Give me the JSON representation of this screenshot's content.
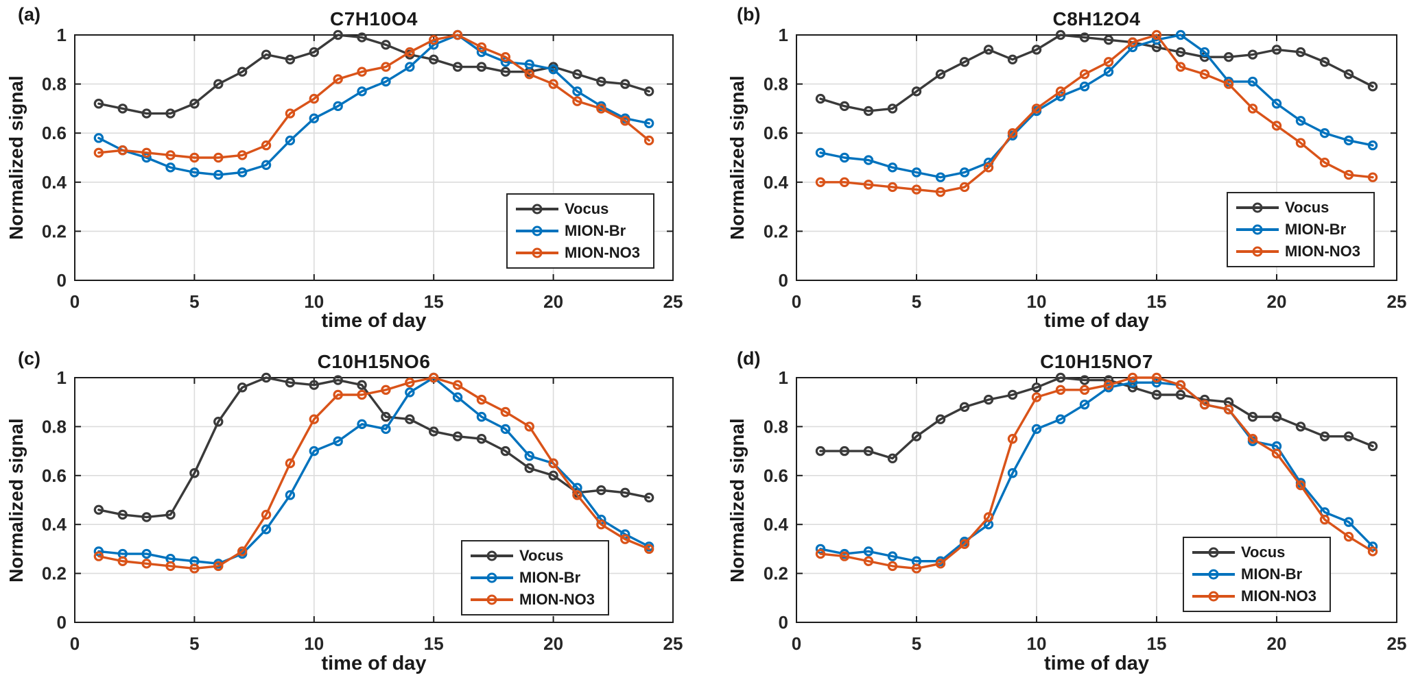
{
  "figure": {
    "background": "#ffffff",
    "text_color": "#1a1a1a",
    "axis_color": "#1c1c1c",
    "grid_color": "#dcdcdc",
    "series_colors": {
      "vocus": "#3a3a3a",
      "mion_br": "#0072BD",
      "mion_no3": "#D95319"
    },
    "ylabel": "Normalized signal",
    "xlabel": "time of day"
  },
  "chart_data": [
    {
      "id": "a",
      "panel_label": "(a)",
      "type": "line",
      "title": "C7H10O4",
      "xlabel": "time of day",
      "ylabel": "Normalized signal",
      "xlim": [
        0,
        25
      ],
      "ylim": [
        0,
        1
      ],
      "xticks": [
        0,
        5,
        10,
        15,
        20,
        25
      ],
      "yticks": [
        0,
        0.2,
        0.4,
        0.6,
        0.8,
        1
      ],
      "grid": true,
      "legend_position": "inset lower right",
      "x": [
        1,
        2,
        3,
        4,
        5,
        6,
        7,
        8,
        9,
        10,
        11,
        12,
        13,
        14,
        15,
        16,
        17,
        18,
        19,
        20,
        21,
        22,
        23,
        24
      ],
      "series": [
        {
          "name": "Vocus",
          "color": "#3a3a3a",
          "values": [
            0.72,
            0.7,
            0.68,
            0.68,
            0.72,
            0.8,
            0.85,
            0.92,
            0.9,
            0.93,
            1.0,
            0.99,
            0.96,
            0.92,
            0.9,
            0.87,
            0.87,
            0.85,
            0.85,
            0.87,
            0.84,
            0.81,
            0.8,
            0.77
          ]
        },
        {
          "name": "MION-Br",
          "color": "#0072BD",
          "values": [
            0.58,
            0.53,
            0.5,
            0.46,
            0.44,
            0.43,
            0.44,
            0.47,
            0.57,
            0.66,
            0.71,
            0.77,
            0.81,
            0.87,
            0.96,
            1.0,
            0.93,
            0.89,
            0.88,
            0.86,
            0.77,
            0.71,
            0.66,
            0.64
          ]
        },
        {
          "name": "MION-NO3",
          "color": "#D95319",
          "values": [
            0.52,
            0.53,
            0.52,
            0.51,
            0.5,
            0.5,
            0.51,
            0.55,
            0.68,
            0.74,
            0.82,
            0.85,
            0.87,
            0.93,
            0.98,
            1.0,
            0.95,
            0.91,
            0.84,
            0.8,
            0.73,
            0.7,
            0.65,
            0.57
          ]
        }
      ]
    },
    {
      "id": "b",
      "panel_label": "(b)",
      "type": "line",
      "title": "C8H12O4",
      "xlabel": "time of day",
      "ylabel": "Normalized signal",
      "xlim": [
        0,
        25
      ],
      "ylim": [
        0,
        1
      ],
      "xticks": [
        0,
        5,
        10,
        15,
        20,
        25
      ],
      "yticks": [
        0,
        0.2,
        0.4,
        0.6,
        0.8,
        1
      ],
      "grid": true,
      "legend_position": "inset lower right",
      "x": [
        1,
        2,
        3,
        4,
        5,
        6,
        7,
        8,
        9,
        10,
        11,
        12,
        13,
        14,
        15,
        16,
        17,
        18,
        19,
        20,
        21,
        22,
        23,
        24
      ],
      "series": [
        {
          "name": "Vocus",
          "color": "#3a3a3a",
          "values": [
            0.74,
            0.71,
            0.69,
            0.7,
            0.77,
            0.84,
            0.89,
            0.94,
            0.9,
            0.94,
            1.0,
            0.99,
            0.98,
            0.97,
            0.95,
            0.93,
            0.91,
            0.91,
            0.92,
            0.94,
            0.93,
            0.89,
            0.84,
            0.79
          ]
        },
        {
          "name": "MION-Br",
          "color": "#0072BD",
          "values": [
            0.52,
            0.5,
            0.49,
            0.46,
            0.44,
            0.42,
            0.44,
            0.48,
            0.59,
            0.69,
            0.75,
            0.79,
            0.85,
            0.95,
            0.98,
            1.0,
            0.93,
            0.81,
            0.81,
            0.72,
            0.65,
            0.6,
            0.57,
            0.55
          ]
        },
        {
          "name": "MION-NO3",
          "color": "#D95319",
          "values": [
            0.4,
            0.4,
            0.39,
            0.38,
            0.37,
            0.36,
            0.38,
            0.46,
            0.6,
            0.7,
            0.77,
            0.84,
            0.89,
            0.97,
            1.0,
            0.87,
            0.84,
            0.8,
            0.7,
            0.63,
            0.56,
            0.48,
            0.43,
            0.42
          ]
        }
      ]
    },
    {
      "id": "c",
      "panel_label": "(c)",
      "type": "line",
      "title": "C10H15NO6",
      "xlabel": "time of day",
      "ylabel": "Normalized signal",
      "xlim": [
        0,
        25
      ],
      "ylim": [
        0,
        1
      ],
      "xticks": [
        0,
        5,
        10,
        15,
        20,
        25
      ],
      "yticks": [
        0,
        0.2,
        0.4,
        0.6,
        0.8,
        1
      ],
      "grid": true,
      "legend_position": "inset lower right",
      "x": [
        1,
        2,
        3,
        4,
        5,
        6,
        7,
        8,
        9,
        10,
        11,
        12,
        13,
        14,
        15,
        16,
        17,
        18,
        19,
        20,
        21,
        22,
        23,
        24
      ],
      "series": [
        {
          "name": "Vocus",
          "color": "#3a3a3a",
          "values": [
            0.46,
            0.44,
            0.43,
            0.44,
            0.61,
            0.82,
            0.96,
            1.0,
            0.98,
            0.97,
            0.99,
            0.97,
            0.84,
            0.83,
            0.78,
            0.76,
            0.75,
            0.7,
            0.63,
            0.6,
            0.53,
            0.54,
            0.53,
            0.51
          ]
        },
        {
          "name": "MION-Br",
          "color": "#0072BD",
          "values": [
            0.29,
            0.28,
            0.28,
            0.26,
            0.25,
            0.24,
            0.28,
            0.38,
            0.52,
            0.7,
            0.74,
            0.81,
            0.79,
            0.94,
            1.0,
            0.92,
            0.84,
            0.79,
            0.68,
            0.65,
            0.55,
            0.42,
            0.36,
            0.31
          ]
        },
        {
          "name": "MION-NO3",
          "color": "#D95319",
          "values": [
            0.27,
            0.25,
            0.24,
            0.23,
            0.22,
            0.23,
            0.29,
            0.44,
            0.65,
            0.83,
            0.93,
            0.93,
            0.95,
            0.98,
            1.0,
            0.97,
            0.91,
            0.86,
            0.8,
            0.65,
            0.52,
            0.4,
            0.34,
            0.3
          ]
        }
      ]
    },
    {
      "id": "d",
      "panel_label": "(d)",
      "type": "line",
      "title": "C10H15NO7",
      "xlabel": "time of day",
      "ylabel": "Normalized signal",
      "xlim": [
        0,
        25
      ],
      "ylim": [
        0,
        1
      ],
      "xticks": [
        0,
        5,
        10,
        15,
        20,
        25
      ],
      "yticks": [
        0,
        0.2,
        0.4,
        0.6,
        0.8,
        1
      ],
      "grid": true,
      "legend_position": "inset lower right",
      "x": [
        1,
        2,
        3,
        4,
        5,
        6,
        7,
        8,
        9,
        10,
        11,
        12,
        13,
        14,
        15,
        16,
        17,
        18,
        19,
        20,
        21,
        22,
        23,
        24
      ],
      "series": [
        {
          "name": "Vocus",
          "color": "#3a3a3a",
          "values": [
            0.7,
            0.7,
            0.7,
            0.67,
            0.76,
            0.83,
            0.88,
            0.91,
            0.93,
            0.96,
            1.0,
            0.99,
            0.99,
            0.96,
            0.93,
            0.93,
            0.91,
            0.9,
            0.84,
            0.84,
            0.8,
            0.76,
            0.76,
            0.72
          ]
        },
        {
          "name": "MION-Br",
          "color": "#0072BD",
          "values": [
            0.3,
            0.28,
            0.29,
            0.27,
            0.25,
            0.25,
            0.33,
            0.4,
            0.61,
            0.79,
            0.83,
            0.89,
            0.96,
            0.98,
            0.98,
            0.97,
            0.89,
            0.87,
            0.74,
            0.72,
            0.57,
            0.45,
            0.41,
            0.31
          ]
        },
        {
          "name": "MION-NO3",
          "color": "#D95319",
          "values": [
            0.28,
            0.27,
            0.25,
            0.23,
            0.22,
            0.24,
            0.32,
            0.43,
            0.75,
            0.92,
            0.95,
            0.95,
            0.97,
            1.0,
            1.0,
            0.97,
            0.89,
            0.87,
            0.75,
            0.69,
            0.56,
            0.42,
            0.35,
            0.29
          ]
        }
      ]
    }
  ]
}
